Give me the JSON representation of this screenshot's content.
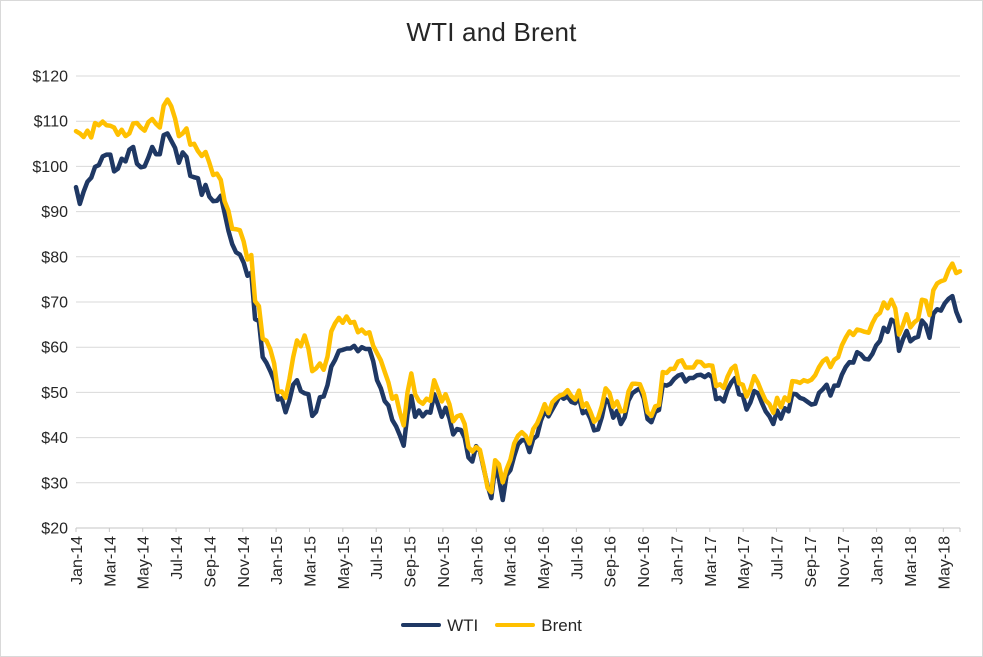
{
  "chart_data": {
    "type": "line",
    "title": "WTI and Brent",
    "xlabel": "",
    "ylabel": "",
    "ylim": [
      20,
      120
    ],
    "y_ticks": [
      20,
      30,
      40,
      50,
      60,
      70,
      80,
      90,
      100,
      110,
      120
    ],
    "y_tick_labels": [
      "$20",
      "$30",
      "$40",
      "$50",
      "$60",
      "$70",
      "$80",
      "$90",
      "$100",
      "$110",
      "$120"
    ],
    "x_axis_total_months": 53,
    "x_tick_month_step": 2,
    "x_tick_labels": [
      "Jan-14",
      "Mar-14",
      "May-14",
      "Jul-14",
      "Sep-14",
      "Nov-14",
      "Jan-15",
      "Mar-15",
      "May-15",
      "Jul-15",
      "Sep-15",
      "Nov-15",
      "Jan-16",
      "Mar-16",
      "May-16",
      "Jul-16",
      "Sep-16",
      "Nov-16",
      "Jan-17",
      "Mar-17",
      "May-17",
      "Jul-17",
      "Sep-17",
      "Nov-17",
      "Jan-18",
      "Mar-18",
      "May-18"
    ],
    "sampling": "approximately weekly, Jan 2014 through early Jun 2018",
    "grid": "horizontal-only",
    "legend_position": "bottom",
    "series": [
      {
        "name": "WTI",
        "color": "#1F3864",
        "values": [
          95.4,
          91.7,
          94.4,
          96.6,
          97.5,
          99.9,
          100.3,
          102.2,
          102.6,
          102.6,
          98.9,
          99.5,
          101.7,
          101.1,
          103.7,
          104.3,
          100.6,
          99.8,
          100.0,
          102.0,
          104.3,
          102.7,
          102.7,
          106.9,
          107.3,
          105.7,
          104.1,
          100.8,
          103.1,
          102.1,
          97.9,
          97.6,
          97.4,
          93.7,
          95.9,
          93.3,
          92.3,
          92.4,
          93.5,
          89.7,
          85.8,
          82.8,
          81.0,
          80.5,
          78.7,
          75.8,
          76.5,
          66.2,
          65.8,
          57.8,
          56.5,
          54.7,
          52.7,
          48.4,
          48.7,
          45.6,
          48.2,
          51.7,
          52.7,
          50.3,
          49.8,
          49.6,
          44.8,
          45.7,
          48.9,
          49.1,
          51.6,
          55.7,
          57.2,
          59.2,
          59.4,
          59.7,
          59.7,
          60.3,
          59.1,
          60.0,
          59.6,
          59.6,
          56.9,
          52.7,
          50.9,
          48.1,
          47.1,
          43.9,
          42.5,
          40.5,
          38.2,
          45.2,
          49.2,
          44.6,
          46.0,
          44.7,
          45.7,
          45.5,
          49.6,
          47.3,
          44.6,
          46.6,
          44.3,
          40.7,
          41.9,
          41.7,
          40.0,
          35.6,
          34.7,
          38.1,
          37.0,
          33.2,
          29.4,
          26.6,
          33.6,
          30.9,
          26.2,
          31.7,
          32.8,
          35.9,
          38.5,
          39.4,
          39.5,
          36.8,
          39.7,
          40.4,
          43.7,
          45.9,
          44.7,
          46.2,
          47.7,
          49.3,
          48.6,
          49.1,
          47.9,
          47.6,
          48.9,
          45.4,
          45.9,
          44.2,
          41.6,
          41.8,
          44.5,
          48.5,
          47.6,
          44.4,
          45.9,
          43.0,
          44.5,
          48.2,
          49.8,
          50.4,
          50.9,
          48.7,
          44.1,
          43.4,
          45.7,
          46.1,
          51.7,
          51.5,
          51.9,
          53.0,
          53.7,
          54.0,
          52.4,
          53.2,
          53.2,
          53.8,
          53.9,
          53.4,
          54.0,
          53.3,
          48.5,
          48.8,
          48.0,
          50.6,
          52.2,
          53.2,
          49.6,
          49.3,
          46.2,
          47.8,
          50.3,
          49.8,
          47.7,
          45.8,
          44.7,
          43.0,
          46.0,
          44.2,
          46.5,
          45.8,
          49.7,
          49.6,
          48.8,
          48.5,
          47.9,
          47.3,
          47.5,
          49.9,
          50.7,
          51.7,
          49.3,
          51.5,
          51.5,
          53.9,
          55.6,
          56.7,
          56.6,
          58.9,
          58.4,
          57.4,
          57.3,
          58.5,
          60.4,
          61.4,
          64.3,
          63.4,
          66.1,
          65.5,
          59.2,
          61.7,
          63.6,
          61.3,
          62.0,
          62.3,
          65.9,
          64.9,
          62.1,
          67.4,
          68.4,
          68.1,
          69.7,
          70.7,
          71.3,
          67.9,
          65.8
        ]
      },
      {
        "name": "Brent",
        "color": "#FFC000",
        "values": [
          107.8,
          107.3,
          106.5,
          107.9,
          106.4,
          109.6,
          109.1,
          109.9,
          109.1,
          109.0,
          108.6,
          107.0,
          108.1,
          106.7,
          107.3,
          109.5,
          109.6,
          108.6,
          107.9,
          109.8,
          110.5,
          109.4,
          108.6,
          113.4,
          114.8,
          113.3,
          110.6,
          106.7,
          107.3,
          108.4,
          104.8,
          105.0,
          103.4,
          102.3,
          103.2,
          100.8,
          98.1,
          98.4,
          97.0,
          92.3,
          90.2,
          86.2,
          86.1,
          85.9,
          83.4,
          79.4,
          80.4,
          70.2,
          69.1,
          61.9,
          61.4,
          59.5,
          56.4,
          50.1,
          50.2,
          48.8,
          52.9,
          57.8,
          61.5,
          60.2,
          62.6,
          59.7,
          54.7,
          55.3,
          56.4,
          55.0,
          57.9,
          63.5,
          65.3,
          66.5,
          65.4,
          66.8,
          65.4,
          65.6,
          63.3,
          63.9,
          63.0,
          63.3,
          60.3,
          58.7,
          57.1,
          54.6,
          52.2,
          48.6,
          49.2,
          45.5,
          42.7,
          50.0,
          54.2,
          49.6,
          48.1,
          47.5,
          48.6,
          48.1,
          52.7,
          50.5,
          48.0,
          49.6,
          47.4,
          43.6,
          44.7,
          45.0,
          43.0,
          37.9,
          36.9,
          37.9,
          37.3,
          33.5,
          28.9,
          27.9,
          35.0,
          34.1,
          30.1,
          33.0,
          35.1,
          38.7,
          40.4,
          41.2,
          40.4,
          38.7,
          41.9,
          43.1,
          45.1,
          47.4,
          45.4,
          47.8,
          48.7,
          49.3,
          49.6,
          50.5,
          49.2,
          48.4,
          50.4,
          46.8,
          47.6,
          45.7,
          43.5,
          44.3,
          47.0,
          50.9,
          49.9,
          46.8,
          48.0,
          45.8,
          45.9,
          50.2,
          51.9,
          51.9,
          51.8,
          49.7,
          45.6,
          44.8,
          46.9,
          47.2,
          54.5,
          54.3,
          55.2,
          55.2,
          56.8,
          57.1,
          55.5,
          55.5,
          55.5,
          56.8,
          56.7,
          55.8,
          56.0,
          55.9,
          51.4,
          51.8,
          51.0,
          53.5,
          55.2,
          55.9,
          52.0,
          51.7,
          49.1,
          50.8,
          53.6,
          52.1,
          50.0,
          48.2,
          47.4,
          45.5,
          48.8,
          46.7,
          48.9,
          48.1,
          52.5,
          52.4,
          52.1,
          52.7,
          52.4,
          52.8,
          53.8,
          55.6,
          56.9,
          57.5,
          55.6,
          57.2,
          57.8,
          60.4,
          62.1,
          63.5,
          62.7,
          63.9,
          63.7,
          63.4,
          63.2,
          65.3,
          66.9,
          67.6,
          69.9,
          68.6,
          70.5,
          68.6,
          62.8,
          64.8,
          67.3,
          64.4,
          65.5,
          66.2,
          70.5,
          70.3,
          67.1,
          72.6,
          74.1,
          74.6,
          74.9,
          77.1,
          78.5,
          76.4,
          76.8
        ]
      }
    ]
  },
  "legend": {
    "items": [
      {
        "label": "WTI",
        "color": "#1F3864"
      },
      {
        "label": "Brent",
        "color": "#FFC000"
      }
    ]
  },
  "colors": {
    "wti": "#1F3864",
    "brent": "#FFC000",
    "gridline": "#D9D9D9",
    "axis": "#C6C6C6",
    "text": "#262626",
    "frame": "#D9D9D9",
    "background": "#FFFFFF"
  }
}
